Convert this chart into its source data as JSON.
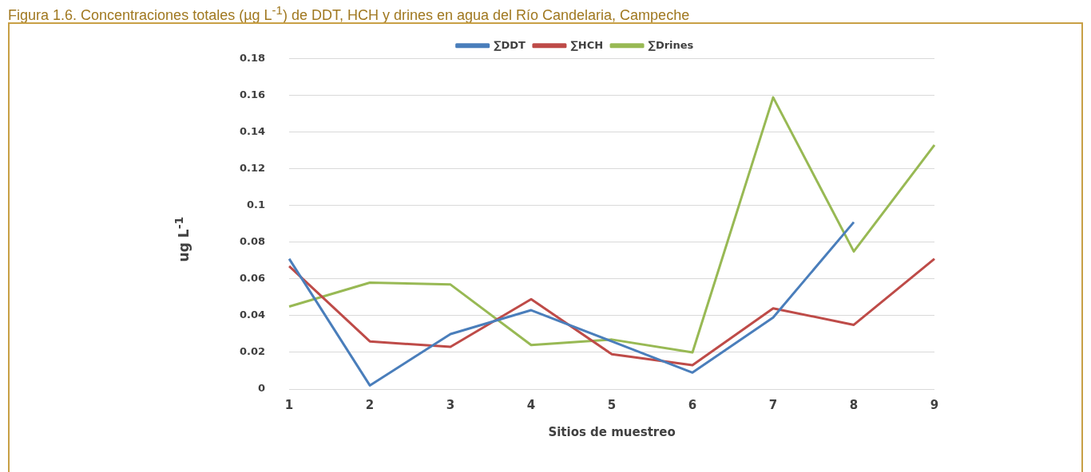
{
  "chart_data": {
    "type": "line",
    "title": "Figura 1.6. Concentraciones totales (µg L$^{-1}$) de DDT, HCH y drines en agua del Río Candelaria, Campeche",
    "xlabel": "Sitios de muestreo",
    "ylabel": "ug L$^{-1}$",
    "categories": [
      "1",
      "2",
      "3",
      "4",
      "5",
      "6",
      "7",
      "8",
      "9"
    ],
    "series": [
      {
        "name": "∑DDT",
        "color": "#4a7ebb",
        "values": [
          0.071,
          0.002,
          0.03,
          0.043,
          0.026,
          0.009,
          0.039,
          0.091,
          null
        ]
      },
      {
        "name": "∑HCH",
        "color": "#be4b48",
        "values": [
          0.067,
          0.026,
          0.023,
          0.049,
          0.019,
          0.013,
          0.044,
          0.035,
          0.071
        ]
      },
      {
        "name": "∑Drines",
        "color": "#98b954",
        "values": [
          0.045,
          0.058,
          0.057,
          0.024,
          0.027,
          0.02,
          0.159,
          0.075,
          0.133
        ]
      }
    ],
    "ylim": [
      0,
      0.18
    ],
    "yticks": [
      0,
      0.02,
      0.04,
      0.06,
      0.08,
      0.1,
      0.12,
      0.14,
      0.16,
      0.18
    ],
    "grid": "y",
    "legend": "top",
    "marker": "none",
    "line_style": "solid"
  }
}
